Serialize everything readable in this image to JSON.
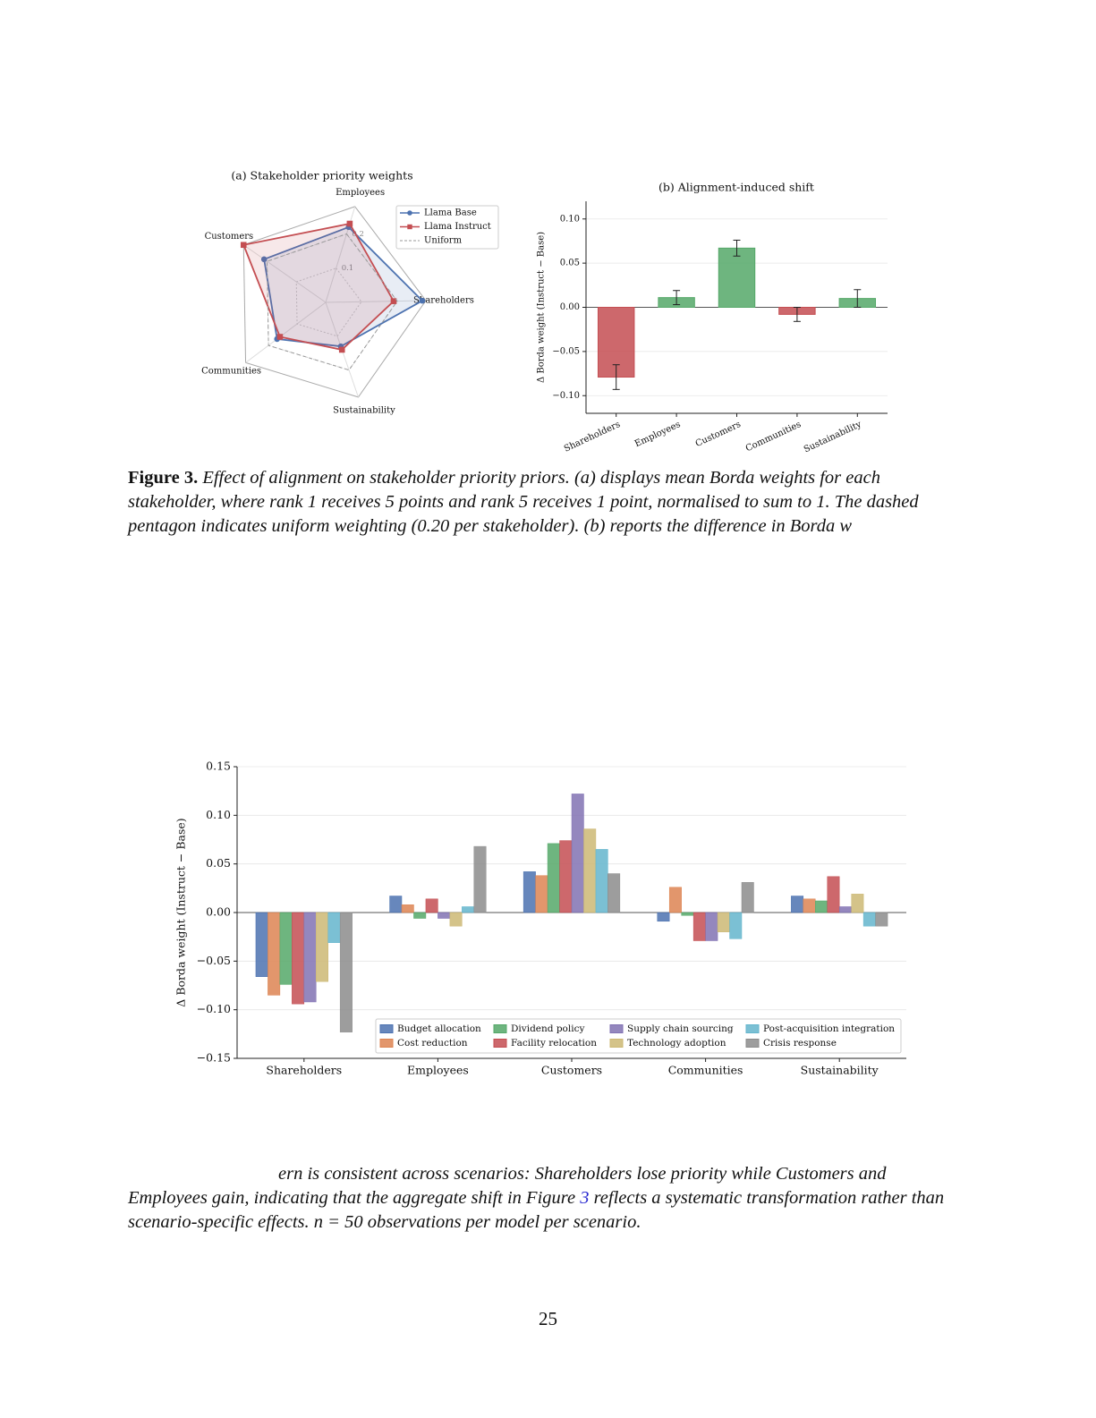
{
  "chart_data": [
    {
      "type": "radar",
      "title": "(a) Stakeholder priority weights",
      "categories": [
        "Employees",
        "Shareholders",
        "Sustainability",
        "Communities",
        "Customers"
      ],
      "series": [
        {
          "name": "Llama Base",
          "color": "#4c72b0",
          "marker": "circle",
          "values": [
            0.22,
            0.27,
            0.13,
            0.17,
            0.21
          ]
        },
        {
          "name": "Llama Instruct",
          "color": "#c44e52",
          "marker": "square",
          "values": [
            0.23,
            0.19,
            0.14,
            0.16,
            0.28
          ]
        },
        {
          "name": "Uniform",
          "color": "#999999",
          "dashed": true,
          "values": [
            0.2,
            0.2,
            0.2,
            0.2,
            0.2
          ]
        }
      ],
      "rlim": [
        0,
        0.28
      ],
      "rticks": [
        0.1,
        0.2
      ],
      "grid": true,
      "legend": "upper right"
    },
    {
      "type": "bar",
      "title": "(b) Alignment-induced shift",
      "ylabel": "Δ Borda weight (Instruct − Base)",
      "categories": [
        "Shareholders",
        "Employees",
        "Customers",
        "Communities",
        "Sustainability"
      ],
      "values": [
        -0.079,
        0.011,
        0.067,
        -0.008,
        0.01
      ],
      "errors": [
        0.014,
        0.008,
        0.009,
        0.008,
        0.01
      ],
      "colors": [
        "#c44e52",
        "#55a868",
        "#55a868",
        "#c44e52",
        "#55a868"
      ],
      "ylim": [
        -0.12,
        0.12
      ],
      "yticks": [
        {
          "value": -0.1,
          "label": "−0.10"
        },
        {
          "value": -0.05,
          "label": "−0.05"
        },
        {
          "value": 0,
          "label": "0.00"
        },
        {
          "value": 0.05,
          "label": "0.05"
        },
        {
          "value": 0.1,
          "label": "0.10"
        }
      ],
      "grid": true
    },
    {
      "type": "grouped_bar",
      "ylabel": "Δ Borda weight (Instruct − Base)",
      "categories": [
        "Shareholders",
        "Employees",
        "Customers",
        "Communities",
        "Sustainability"
      ],
      "series": [
        {
          "name": "Budget allocation",
          "color": "#4c72b0",
          "values": [
            -0.066,
            0.017,
            0.042,
            -0.009,
            0.017
          ]
        },
        {
          "name": "Cost reduction",
          "color": "#dd8452",
          "values": [
            -0.085,
            0.008,
            0.038,
            0.026,
            0.014
          ]
        },
        {
          "name": "Dividend policy",
          "color": "#55a868",
          "values": [
            -0.074,
            -0.006,
            0.071,
            -0.003,
            0.012
          ]
        },
        {
          "name": "Facility relocation",
          "color": "#c44e52",
          "values": [
            -0.094,
            0.014,
            0.074,
            -0.029,
            0.037
          ]
        },
        {
          "name": "Supply chain sourcing",
          "color": "#8172b3",
          "values": [
            -0.092,
            -0.006,
            0.122,
            -0.029,
            0.006
          ]
        },
        {
          "name": "Technology adoption",
          "color": "#ccb974",
          "values": [
            -0.071,
            -0.014,
            0.086,
            -0.02,
            0.019
          ]
        },
        {
          "name": "Post-acquisition integration",
          "color": "#64b5cd",
          "values": [
            -0.031,
            0.006,
            0.065,
            -0.027,
            -0.014
          ]
        },
        {
          "name": "Crisis response",
          "color": "#8c8c8c",
          "values": [
            -0.123,
            0.068,
            0.04,
            0.031,
            -0.014
          ]
        }
      ],
      "ylim": [
        -0.15,
        0.15
      ],
      "yticks": [
        {
          "value": -0.15,
          "label": "−0.15"
        },
        {
          "value": -0.1,
          "label": "−0.10"
        },
        {
          "value": -0.05,
          "label": "−0.05"
        },
        {
          "value": 0,
          "label": "0.00"
        },
        {
          "value": 0.05,
          "label": "0.05"
        },
        {
          "value": 0.1,
          "label": "0.10"
        },
        {
          "value": 0.15,
          "label": "0.15"
        }
      ],
      "grid": true,
      "legend": "lower right",
      "legend_columns": 4
    }
  ],
  "caption": {
    "label": "Figure 3.",
    "text": "Effect of alignment on stakeholder priority priors. (a) displays mean Borda weights for each stakeholder, where rank 1 receives 5 points and rank 5 receives 1 point, normalised to sum to 1. The dashed pentagon indicates uniform weighting (0.20 per stakeholder). (b) reports the difference in Borda w"
  },
  "paragraph": {
    "before": "ern is consistent across scenarios: Shareholders lose priority while Customers and Employees gain, indicating that the aggregate shift in Figure ",
    "ref": "3",
    "after": " reflects a systematic transformation rather than scenario-specific effects. n = 50 observations per model per scenario."
  },
  "page_number": "25"
}
